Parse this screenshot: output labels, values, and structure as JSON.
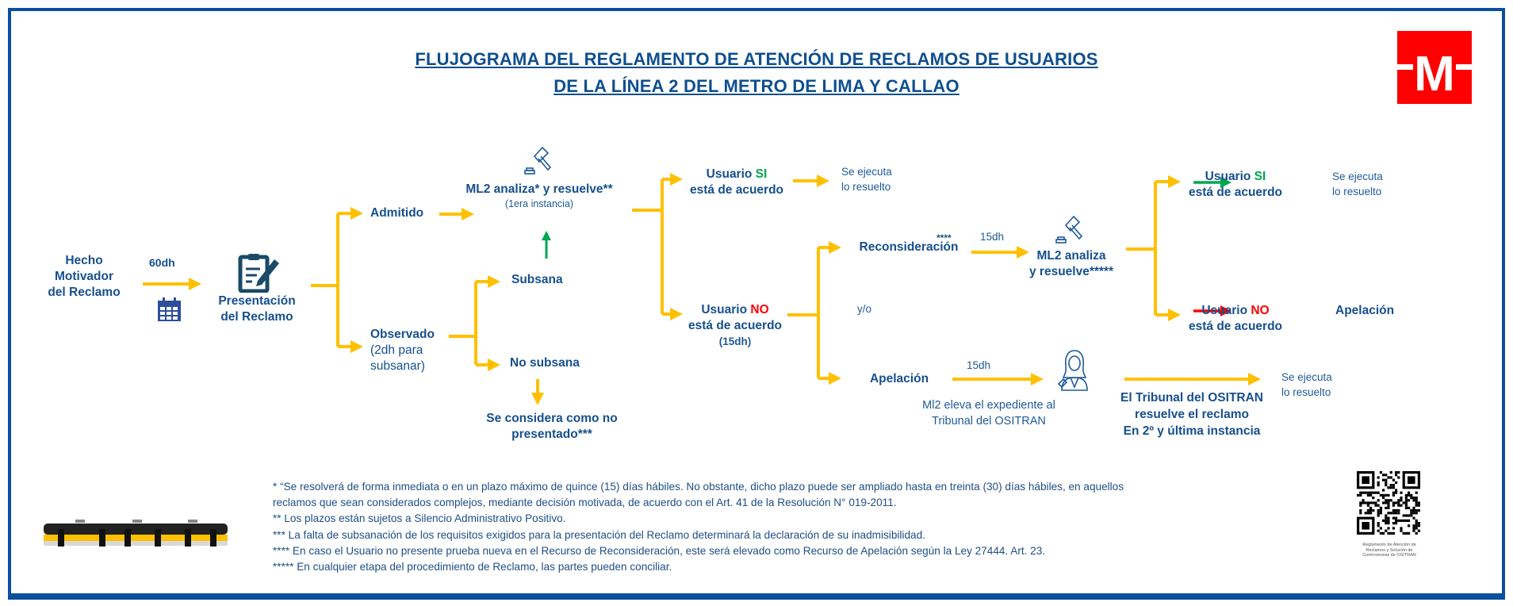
{
  "title": {
    "line1": "FLUJOGRAMA DEL REGLAMENTO DE ATENCIÓN DE RECLAMOS DE USUARIOS",
    "line2": "DE LA LÍNEA 2 DEL METRO DE LIMA Y CALLAO"
  },
  "logo": {
    "letter": "M",
    "color": "#ff0000"
  },
  "colors": {
    "text": "#17508c",
    "arrow": "#ffc000",
    "yes": "#00a650",
    "no": "#ff0000",
    "frame": "#0a4f9e"
  },
  "icons": [
    "calendar-icon",
    "clipboard-pencil-icon",
    "gavel-icon",
    "judge-icon",
    "train-icon",
    "qr-code"
  ],
  "nodes": {
    "hecho": [
      "Hecho",
      "Motivador",
      "del Reclamo"
    ],
    "plazo_60dh": "60dh",
    "presentacion": [
      "Presentación",
      "del Reclamo"
    ],
    "admitido": "Admitido",
    "ml2_primera": {
      "label": "ML2 analiza* y resuelve**",
      "sub": "(1era instancia)"
    },
    "observado": {
      "label": "Observado",
      "sub1": "(2dh para",
      "sub2": "subsanar)"
    },
    "subsana": "Subsana",
    "no_subsana": "No subsana",
    "no_presentado": [
      "Se considera como no",
      "presentado***"
    ],
    "usuario_si_1": {
      "prefix": "Usuario ",
      "answer": "SI",
      "line2": "está de acuerdo"
    },
    "se_ejecuta_1": [
      "Se ejecuta",
      "lo resuelto"
    ],
    "usuario_no_1": {
      "prefix": "Usuario ",
      "answer": "NO",
      "line2": "está de acuerdo",
      "plazo": "(15dh)"
    },
    "reconsideracion": {
      "label": "Reconsideración",
      "mark": "****"
    },
    "plazo_recon": "15dh",
    "ml2_segunda": [
      "ML2 analiza",
      "y resuelve*****"
    ],
    "usuario_si_2": {
      "prefix": "Usuario ",
      "answer": "SI",
      "line2": "está de acuerdo"
    },
    "se_ejecuta_2": [
      "Se ejecuta",
      "lo resuelto"
    ],
    "usuario_no_2": {
      "prefix": "Usuario ",
      "answer": "NO",
      "line2": "está de acuerdo"
    },
    "apelacion_2": "Apelación",
    "y_o": "y/o",
    "apelacion": "Apelación",
    "plazo_apel": "15dh",
    "ml2_eleva": [
      "Ml2 eleva el expediente al",
      "Tribunal del OSITRAN"
    ],
    "tribunal": [
      "El Tribunal del OSITRAN",
      "resuelve el reclamo",
      "En 2º y última instancia"
    ],
    "se_ejecuta_3": [
      "Se ejecuta",
      "lo resuelto"
    ]
  },
  "footnotes": [
    "* “Se resolverá de forma inmediata o en un plazo máximo de quince (15) días hábiles. No obstante, dicho plazo puede ser ampliado hasta en treinta (30) días hábiles, en aquellos",
    "reclamos que sean considerados complejos, mediante decisión motivada, de acuerdo con el Art. 41 de la Resolución N° 019-2011.",
    "** Los plazos están sujetos a Silencio Administrativo Positivo.",
    "*** La falta de subsanación de los requisitos exigidos para la presentación del Reclamo determinará la declaración de su inadmisibilidad.",
    "**** En caso el Usuario no presente prueba nueva en el Recurso de Reconsideración, este será elevado como Recurso de Apelación según la Ley 27444. Art. 23.",
    "***** En cualquier etapa del procedimiento de Reclamo, las partes pueden conciliar."
  ],
  "qr_caption": [
    "Reglamento de Atención de",
    "Reclamos y Solución de",
    "Controversias de OSITRAN"
  ]
}
